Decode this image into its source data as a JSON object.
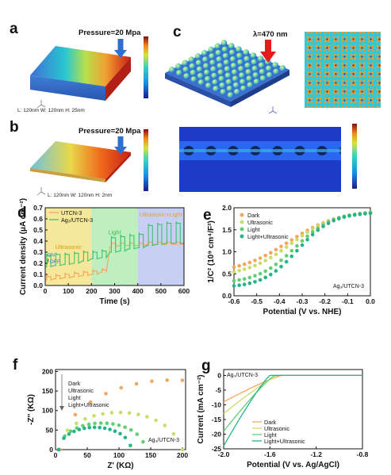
{
  "panels": {
    "a": {
      "label": "a",
      "pressure": "Pressure=20 Mpa",
      "dims": "L: 120nm   W: 120nm   H: 25nm"
    },
    "b": {
      "label": "b",
      "pressure": "Pressure=20 Mpa",
      "dims": "L: 120nm   W: 120nm   H: 2nm"
    },
    "c": {
      "label": "c",
      "wavelength": "λ=470 nm"
    },
    "d": {
      "label": "d"
    },
    "e": {
      "label": "e"
    },
    "f": {
      "label": "f"
    },
    "g": {
      "label": "g"
    }
  },
  "colors": {
    "orange": "#f5a65b",
    "green": "#3cc46a",
    "lime": "#b9de6a",
    "teal": "#26b38a",
    "fe_red": "#d42a1a",
    "fe_blue": "#2d3fb4"
  },
  "chart_data": [
    {
      "id": "d",
      "type": "line",
      "xlabel": "Time (s)",
      "ylabel": "Current density (μA cm⁻²)",
      "xlim": [
        0,
        600
      ],
      "ylim": [
        0,
        0.7
      ],
      "xticks": [
        "0",
        "100",
        "200",
        "300",
        "400",
        "500",
        "600"
      ],
      "yticks": [
        "0.0",
        "0.1",
        "0.2",
        "0.3",
        "0.4",
        "0.5",
        "0.6",
        "0.7"
      ],
      "regions": [
        {
          "label": "Ultrasonic",
          "x": [
            0,
            200
          ],
          "color": "#f6e89a"
        },
        {
          "label": "Light",
          "x": [
            200,
            400
          ],
          "color": "#bfeec0"
        },
        {
          "label": "Ultrasonic+Light",
          "x": [
            400,
            600
          ],
          "color": "#c7cff5"
        }
      ],
      "annotations": [
        "ON",
        "OFF"
      ],
      "series": [
        {
          "name": "UTCN-3",
          "base": [
            0.05,
            0.06,
            0.07,
            0.08,
            0.09,
            0.1,
            0.12,
            0.35,
            0.36,
            0.36,
            0.36,
            0.37,
            0.37,
            0.37,
            0.37
          ],
          "on": [
            0.08,
            0.09,
            0.1,
            0.11,
            0.12,
            0.13,
            0.14,
            0.38,
            0.38,
            0.38,
            0.38,
            0.39,
            0.39,
            0.39,
            0.39
          ]
        },
        {
          "name": "Ag₃/UTCN-3",
          "base": [
            0.17,
            0.18,
            0.19,
            0.2,
            0.22,
            0.24,
            0.25,
            0.3,
            0.31,
            0.33,
            0.34,
            0.36,
            0.37,
            0.38,
            0.38
          ],
          "on": [
            0.27,
            0.28,
            0.28,
            0.29,
            0.3,
            0.3,
            0.31,
            0.43,
            0.44,
            0.45,
            0.46,
            0.54,
            0.55,
            0.56,
            0.56
          ]
        }
      ]
    },
    {
      "id": "e",
      "type": "scatter",
      "xlabel": "Potential (V vs. NHE)",
      "ylabel": "1/C² (10⁹ cm⁴/F²)",
      "xlim": [
        -0.6,
        0.0
      ],
      "ylim": [
        0.0,
        2.0
      ],
      "xticks": [
        "-0.6",
        "-0.5",
        "-0.4",
        "-0.3",
        "-0.2",
        "-0.1",
        "0.0"
      ],
      "yticks": [
        "0.0",
        "0.5",
        "1.0",
        "1.5",
        "2.0"
      ],
      "annotation": "Ag₃/UTCN-3",
      "series": [
        {
          "name": "Dark",
          "ymin": 0.5,
          "ymax": 1.95,
          "mid": -0.36,
          "k": 9,
          "color": "#f5a65b"
        },
        {
          "name": "Ultrasonic",
          "ymin": 0.43,
          "ymax": 1.93,
          "mid": -0.35,
          "k": 10,
          "color": "#c9de6a"
        },
        {
          "name": "Light",
          "ymin": 0.28,
          "ymax": 1.92,
          "mid": -0.33,
          "k": 12,
          "color": "#63cf73"
        },
        {
          "name": "Light+Ultrasonic",
          "ymin": 0.18,
          "ymax": 1.9,
          "mid": -0.32,
          "k": 13,
          "color": "#26b38a"
        }
      ]
    },
    {
      "id": "f",
      "type": "scatter",
      "xlabel": "Z' (KΩ)",
      "ylabel": "-Z'' (KΩ)",
      "xlim": [
        0,
        205
      ],
      "ylim": [
        0,
        205
      ],
      "xticks": [
        "0",
        "50",
        "100",
        "150",
        "200"
      ],
      "yticks": [
        "0",
        "50",
        "100",
        "150",
        "200"
      ],
      "annotation": "Ag₃/UTCN-3",
      "series": [
        {
          "name": "Dark",
          "cx": 185,
          "r": 178,
          "xmax": 200,
          "color": "#f5a65b"
        },
        {
          "name": "Ultrasonic",
          "cx": 100,
          "r": 95,
          "xmax": 200,
          "color": "#c9de6a"
        },
        {
          "name": "Light",
          "cx": 73,
          "r": 68,
          "xmax": 138,
          "color": "#63cf73"
        },
        {
          "name": "Light+Ultrasonic",
          "cx": 62,
          "r": 57,
          "xmax": 118,
          "color": "#26b38a"
        }
      ]
    },
    {
      "id": "g",
      "type": "line",
      "xlabel": "Potential (V vs. Ag/AgCl)",
      "ylabel": "Current (mA cm⁻²)",
      "xlim": [
        -2.0,
        -0.8
      ],
      "ylim": [
        -25,
        2
      ],
      "xticks": [
        "-2.0",
        "-1.6",
        "-1.2",
        "-0.8"
      ],
      "yticks": [
        "-25",
        "-20",
        "-15",
        "-10",
        "-5",
        "0"
      ],
      "annotation": "Ag₃/UTCN-3",
      "series": [
        {
          "name": "Dark",
          "ymin": -9,
          "onset": -1.5,
          "color": "#f5a65b"
        },
        {
          "name": "Ultrasonic",
          "ymin": -13,
          "onset": -1.53,
          "color": "#c9de6a"
        },
        {
          "name": "Light",
          "ymin": -19,
          "onset": -1.56,
          "color": "#63cf73"
        },
        {
          "name": "Light+Ultrasonic",
          "ymin": -24,
          "onset": -1.6,
          "color": "#26b38a"
        }
      ]
    }
  ]
}
